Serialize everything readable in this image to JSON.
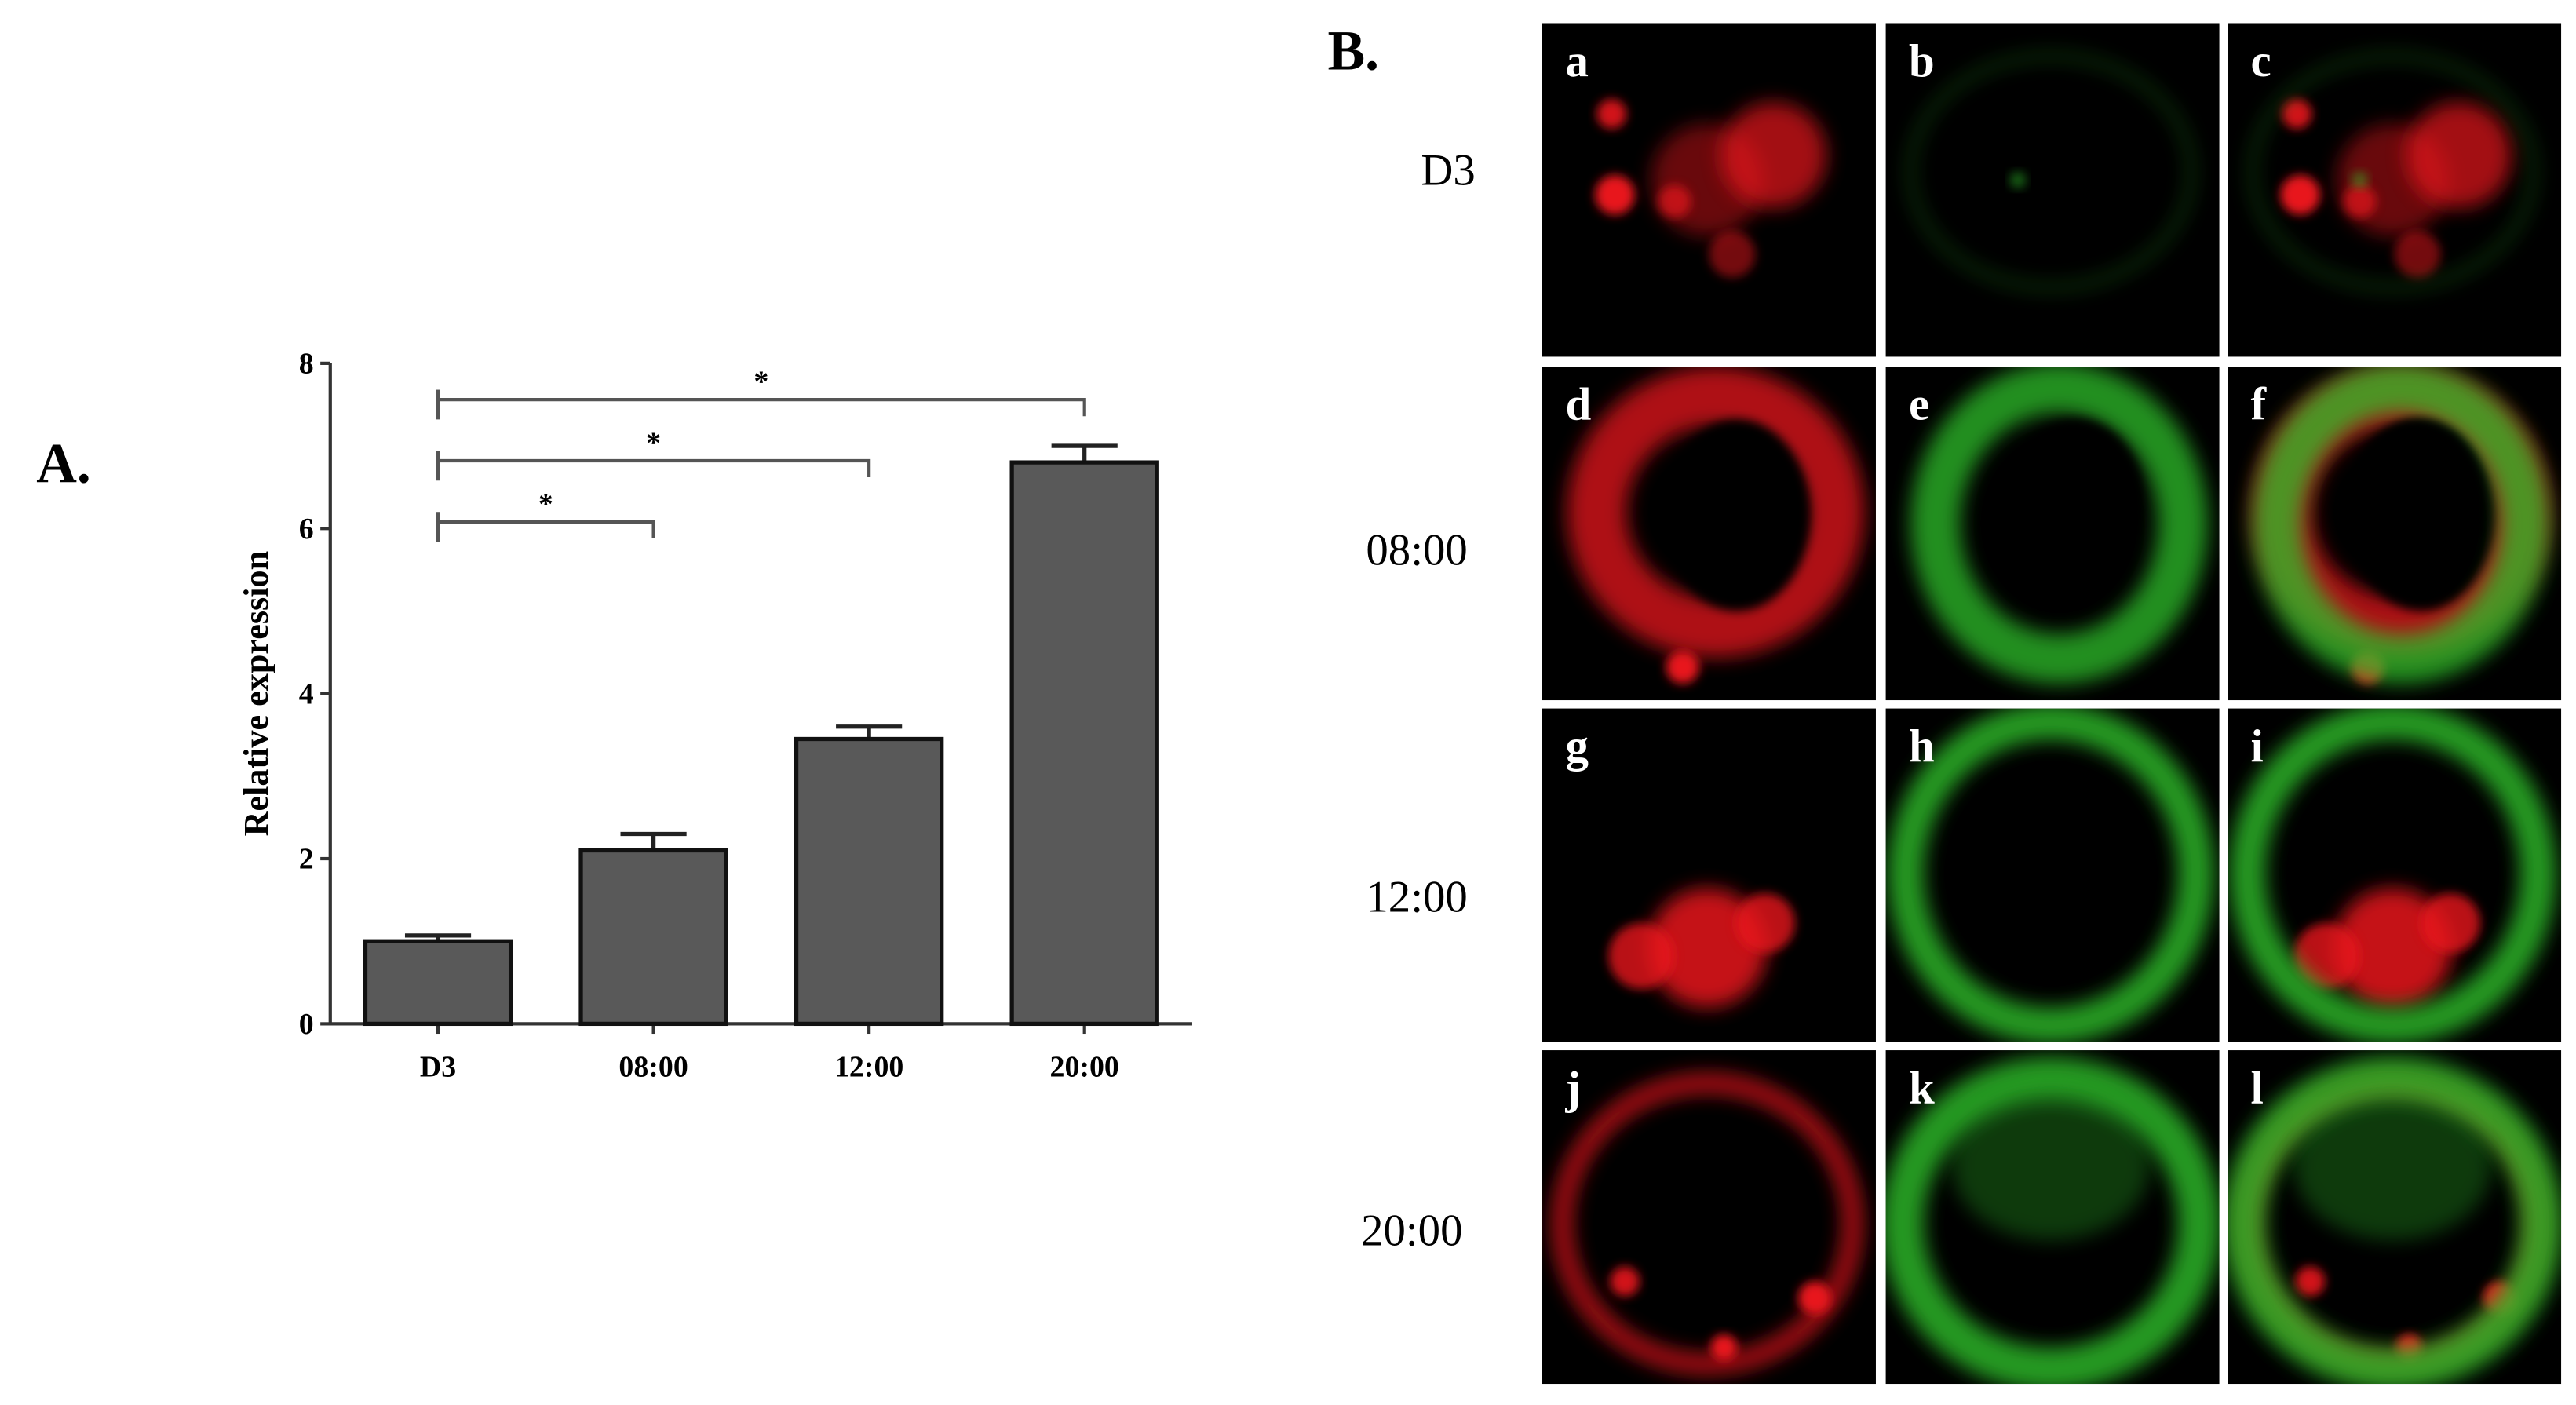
{
  "chart_data": {
    "type": "bar",
    "panel_label": "A.",
    "ylabel": "Relative expression",
    "categories": [
      "D3",
      "08:00",
      "12:00",
      "20:00"
    ],
    "values": [
      1.0,
      2.1,
      3.45,
      6.8
    ],
    "errors": [
      0.07,
      0.2,
      0.15,
      0.2
    ],
    "color": "#595959",
    "ylim": [
      0,
      8
    ],
    "yticks": [
      0,
      2,
      4,
      6,
      8
    ],
    "significance": [
      {
        "from": "D3",
        "to": "08:00",
        "label": "*"
      },
      {
        "from": "D3",
        "to": "12:00",
        "label": "*"
      },
      {
        "from": "D3",
        "to": "20:00",
        "label": "*"
      }
    ]
  },
  "micrographs": {
    "panel_label": "B.",
    "rows": [
      "D3",
      "08:00",
      "12:00",
      "20:00"
    ],
    "panels": [
      "a",
      "b",
      "c",
      "d",
      "e",
      "f",
      "g",
      "h",
      "i",
      "j",
      "k",
      "l"
    ]
  }
}
